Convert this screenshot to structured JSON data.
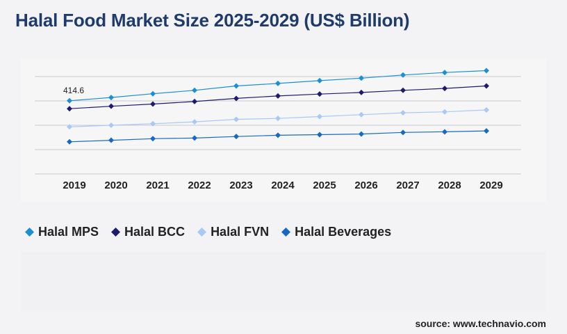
{
  "title": "Halal Food Market Size 2025-2029 (US$ Billion)",
  "source": "source: www.technavio.com",
  "chart_data": {
    "type": "line",
    "categories": [
      "2019",
      "2020",
      "2021",
      "2022",
      "2023",
      "2024",
      "2025",
      "2026",
      "2027",
      "2028",
      "2029"
    ],
    "grid": true,
    "legend_position": "bottom-left",
    "annotations": [
      {
        "series": "Halal MPS",
        "category": "2019",
        "text": "414.6"
      }
    ],
    "series": [
      {
        "name": "Halal MPS",
        "color": "#1a8fd6",
        "values": [
          414.6,
          425,
          437,
          448,
          462,
          470,
          479,
          487,
          497,
          505,
          511
        ]
      },
      {
        "name": "Halal BCC",
        "color": "#1e1a6e",
        "values": [
          389,
          397,
          404,
          412,
          422,
          430,
          436,
          441,
          448,
          454,
          462
        ]
      },
      {
        "name": "Halal FVN",
        "color": "#a8c8f5",
        "values": [
          331,
          336,
          341,
          347,
          355,
          358,
          364,
          370,
          376,
          379,
          385
        ]
      },
      {
        "name": "Halal Beverages",
        "color": "#1769c4",
        "values": [
          283,
          288,
          293,
          295,
          300,
          304,
          306,
          308,
          313,
          315,
          318
        ]
      }
    ]
  }
}
